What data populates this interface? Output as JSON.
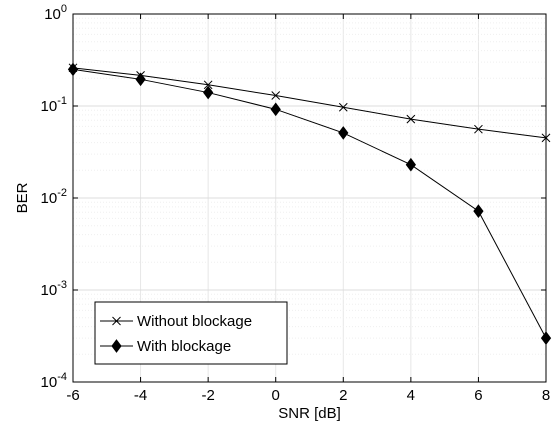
{
  "chart_data": {
    "type": "line",
    "title": "",
    "xlabel": "SNR [dB]",
    "ylabel": "BER",
    "x": [
      -6,
      -4,
      -2,
      0,
      2,
      4,
      6,
      8
    ],
    "xlim": [
      -6,
      8
    ],
    "xticks": [
      -6,
      -4,
      -2,
      0,
      2,
      4,
      6,
      8
    ],
    "ylim": [
      0.0001,
      1
    ],
    "yscale": "log",
    "yticks": [
      {
        "value": 0.0001,
        "base": "10",
        "exp": "-4"
      },
      {
        "value": 0.001,
        "base": "10",
        "exp": "-3"
      },
      {
        "value": 0.01,
        "base": "10",
        "exp": "-2"
      },
      {
        "value": 0.1,
        "base": "10",
        "exp": "-1"
      },
      {
        "value": 1,
        "base": "10",
        "exp": "0"
      }
    ],
    "grid": true,
    "legend_position": "bottom-left",
    "series": [
      {
        "name": "Without blockage",
        "marker": "x",
        "color": "#000000",
        "values": [
          0.26,
          0.215,
          0.17,
          0.13,
          0.097,
          0.072,
          0.056,
          0.045
        ]
      },
      {
        "name": "With blockage",
        "marker": "diamond",
        "color": "#000000",
        "values": [
          0.25,
          0.195,
          0.14,
          0.092,
          0.051,
          0.023,
          0.0072,
          0.0003
        ]
      }
    ]
  }
}
